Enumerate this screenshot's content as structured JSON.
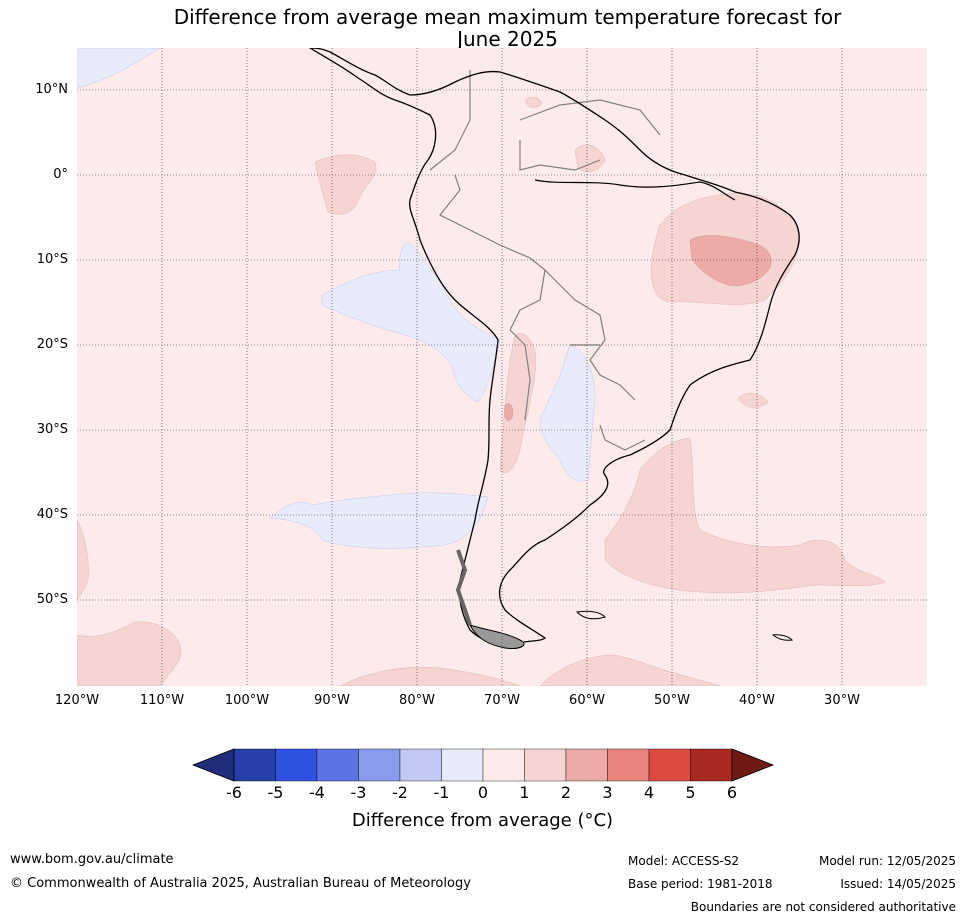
{
  "title_line1": "Difference from average mean maximum temperature forecast for",
  "title_line2": "June 2025",
  "lat_labels": [
    "10°N",
    "0°",
    "10°S",
    "20°S",
    "30°S",
    "40°S",
    "50°S"
  ],
  "lon_labels": [
    "120°W",
    "110°W",
    "100°W",
    "90°W",
    "80°W",
    "70°W",
    "60°W",
    "50°W",
    "40°W",
    "30°W"
  ],
  "colorbar": {
    "ticks": [
      "-6",
      "-5",
      "-4",
      "-3",
      "-2",
      "-1",
      "0",
      "1",
      "2",
      "3",
      "4",
      "5",
      "6"
    ],
    "colors": [
      "#283ea8",
      "#3052e0",
      "#5c73e6",
      "#8a9bec",
      "#c2c8f3",
      "#e8ebfa",
      "#fcebea",
      "#f5d4d2",
      "#edaba8",
      "#e8837e",
      "#dc4a40",
      "#a82920"
    ],
    "extend_low_color": "#1f2d7a",
    "extend_high_color": "#701a16",
    "label": "Difference from average (°C)"
  },
  "footer": {
    "url": "www.bom.gov.au/climate",
    "copyright": "© Commonwealth of Australia 2025, Australian Bureau of Meteorology",
    "model": "Model: ACCESS-S2",
    "base_period": "Base period: 1981-2018",
    "model_run": "Model run: 12/05/2025",
    "issued": "Issued: 14/05/2025",
    "disclaimer": "Boundaries are not considered authoritative"
  },
  "field_colors": {
    "background": "#fcebea",
    "warm_1_2": "#f5d4d2",
    "warm_2_3": "#edaba8",
    "cool_0_1": "#e8ebfa"
  }
}
